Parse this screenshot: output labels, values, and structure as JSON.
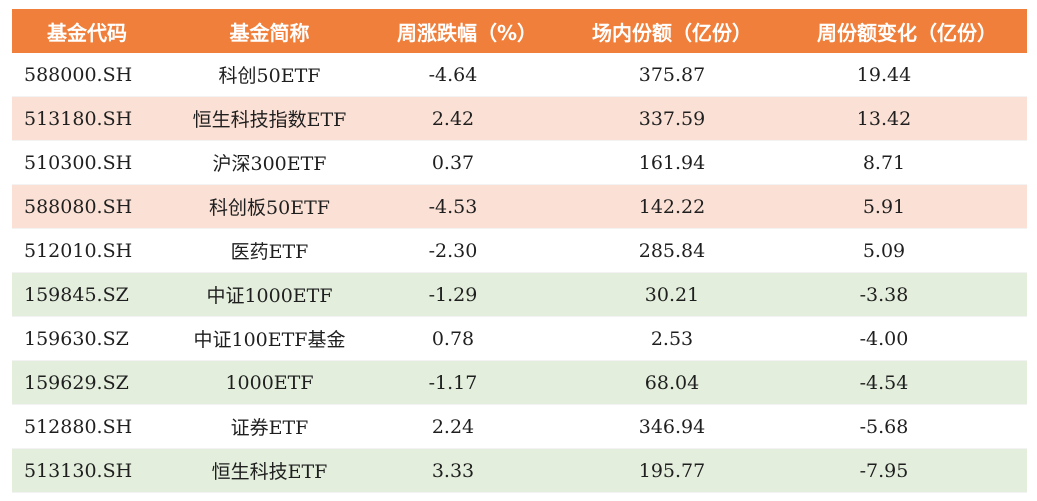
{
  "colors": {
    "header_bg": "#ef7f3a",
    "row_orange": "#fbe1d5",
    "row_green": "#e3efdc",
    "row_white": "#ffffff"
  },
  "headers": [
    "基金代码",
    "基金简称",
    "周涨跌幅（%）",
    "场内份额（亿份）",
    "周份额变化（亿份）"
  ],
  "rows": [
    {
      "code": "588000.SH",
      "name": "科创50ETF",
      "weekly_change": "-4.64",
      "shares": "375.87",
      "share_change": "19.44",
      "tint": "white"
    },
    {
      "code": "513180.SH",
      "name": "恒生科技指数ETF",
      "weekly_change": "2.42",
      "shares": "337.59",
      "share_change": "13.42",
      "tint": "orange"
    },
    {
      "code": "510300.SH",
      "name": "沪深300ETF",
      "weekly_change": "0.37",
      "shares": "161.94",
      "share_change": "8.71",
      "tint": "white"
    },
    {
      "code": "588080.SH",
      "name": "科创板50ETF",
      "weekly_change": "-4.53",
      "shares": "142.22",
      "share_change": "5.91",
      "tint": "orange"
    },
    {
      "code": "512010.SH",
      "name": "医药ETF",
      "weekly_change": "-2.30",
      "shares": "285.84",
      "share_change": "5.09",
      "tint": "white"
    },
    {
      "code": "159845.SZ",
      "name": "中证1000ETF",
      "weekly_change": "-1.29",
      "shares": "30.21",
      "share_change": "-3.38",
      "tint": "green"
    },
    {
      "code": "159630.SZ",
      "name": "中证100ETF基金",
      "weekly_change": "0.78",
      "shares": "2.53",
      "share_change": "-4.00",
      "tint": "white"
    },
    {
      "code": "159629.SZ",
      "name": "1000ETF",
      "weekly_change": "-1.17",
      "shares": "68.04",
      "share_change": "-4.54",
      "tint": "green"
    },
    {
      "code": "512880.SH",
      "name": "证券ETF",
      "weekly_change": "2.24",
      "shares": "346.94",
      "share_change": "-5.68",
      "tint": "white"
    },
    {
      "code": "513130.SH",
      "name": "恒生科技ETF",
      "weekly_change": "3.33",
      "shares": "195.77",
      "share_change": "-7.95",
      "tint": "green"
    }
  ]
}
